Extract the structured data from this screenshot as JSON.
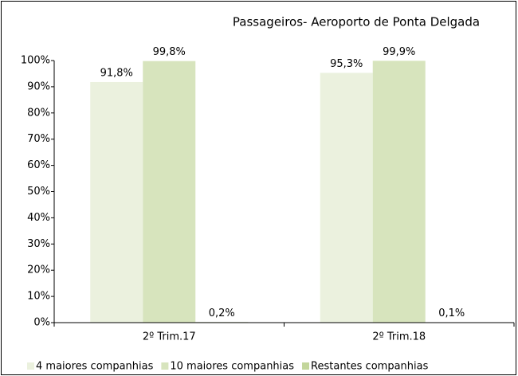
{
  "chart_data": {
    "type": "bar",
    "title": "Passageiros- Aeroporto de Ponta Delgada",
    "categories": [
      "2º Trim.17",
      "2º Trim.18"
    ],
    "series": [
      {
        "name": "4 maiores companhias",
        "color": "#ebf1de",
        "values": [
          91.8,
          95.3
        ],
        "value_labels": [
          "91,8%",
          "95,3%"
        ]
      },
      {
        "name": "10 maiores companhias",
        "color": "#d7e4bd",
        "values": [
          99.8,
          99.9
        ],
        "value_labels": [
          "99,8%",
          "99,9%"
        ]
      },
      {
        "name": "Restantes companhias",
        "color": "#c3d69b",
        "values": [
          0.2,
          0.1
        ],
        "value_labels": [
          "0,2%",
          "0,1%"
        ]
      }
    ],
    "ylim": [
      0,
      100
    ],
    "yticks": [
      {
        "value": 0,
        "label": "0%"
      },
      {
        "value": 10,
        "label": "10%"
      },
      {
        "value": 20,
        "label": "20%"
      },
      {
        "value": 30,
        "label": "30%"
      },
      {
        "value": 40,
        "label": "40%"
      },
      {
        "value": 50,
        "label": "50%"
      },
      {
        "value": 60,
        "label": "60%"
      },
      {
        "value": 70,
        "label": "70%"
      },
      {
        "value": 80,
        "label": "80%"
      },
      {
        "value": 90,
        "label": "90%"
      },
      {
        "value": 100,
        "label": "100%"
      }
    ],
    "legend": "bottom"
  }
}
